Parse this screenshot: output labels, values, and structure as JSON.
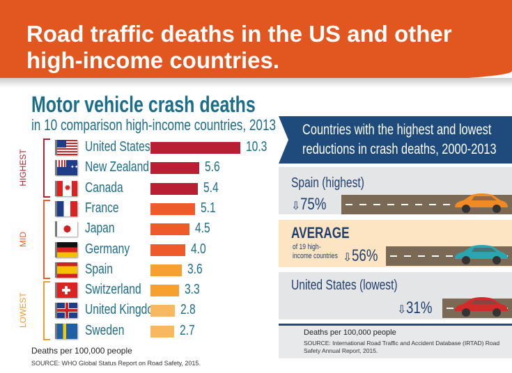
{
  "header": {
    "title_line1": "Road traffic deaths in the US and other",
    "title_line2": "high-income countries."
  },
  "chart_data": [
    {
      "type": "bar",
      "orientation": "horizontal",
      "title": "Motor vehicle crash deaths",
      "subtitle": "in 10 comparison high-income countries, 2013",
      "categories": [
        "United States",
        "New Zealand",
        "Canada",
        "France",
        "Japan",
        "Germany",
        "Spain",
        "Switzerland",
        "United Kingdom",
        "Sweden"
      ],
      "values": [
        10.3,
        5.6,
        5.4,
        5.1,
        4.5,
        4.0,
        3.6,
        3.3,
        2.8,
        2.7
      ],
      "value_labels": [
        "10.3",
        "5.6",
        "5.4",
        "5.1",
        "4.5",
        "4.0",
        "3.6",
        "3.3",
        "2.8",
        "2.7"
      ],
      "groups": [
        {
          "label": "HIGHEST",
          "color": "#b81f33",
          "members": [
            0,
            1,
            2
          ]
        },
        {
          "label": "MID",
          "color": "#ef5a2a",
          "members": [
            3,
            4,
            5,
            6
          ]
        },
        {
          "label": "LOWEST",
          "color": "#f39a2e",
          "members": [
            7,
            8,
            9
          ]
        }
      ],
      "bar_colors": [
        "#b81f33",
        "#b81f33",
        "#b81f33",
        "#ef5a2a",
        "#ef5a2a",
        "#ef5a2a",
        "#f5a030",
        "#f5a030",
        "#f7b860",
        "#f7b860"
      ],
      "xlabel": "Deaths per 100,000 people",
      "source": "SOURCE: WHO Global Status Report on Road Safety, 2015."
    },
    {
      "type": "bar",
      "title_line1": "Countries with the highest and lowest",
      "title_line2": "reductions in crash deaths, 2000-2013",
      "items": [
        {
          "label": "Spain (highest)",
          "value": 75,
          "value_label": "75%",
          "car_color": "#f08a24"
        },
        {
          "label": "AVERAGE",
          "sublabel_line1": "of 19 high-",
          "sublabel_line2": "income countries",
          "value": 56,
          "value_label": "56%",
          "car_color": "#2aa6b0"
        },
        {
          "label": "United States (lowest)",
          "value": 31,
          "value_label": "31%",
          "car_color": "#d42a2a"
        }
      ],
      "unit": "Deaths per 100,000 people",
      "source": "SOURCE: International Road Traffic and Accident Database (IRTAD) Road Safety Annual Report, 2015."
    }
  ]
}
